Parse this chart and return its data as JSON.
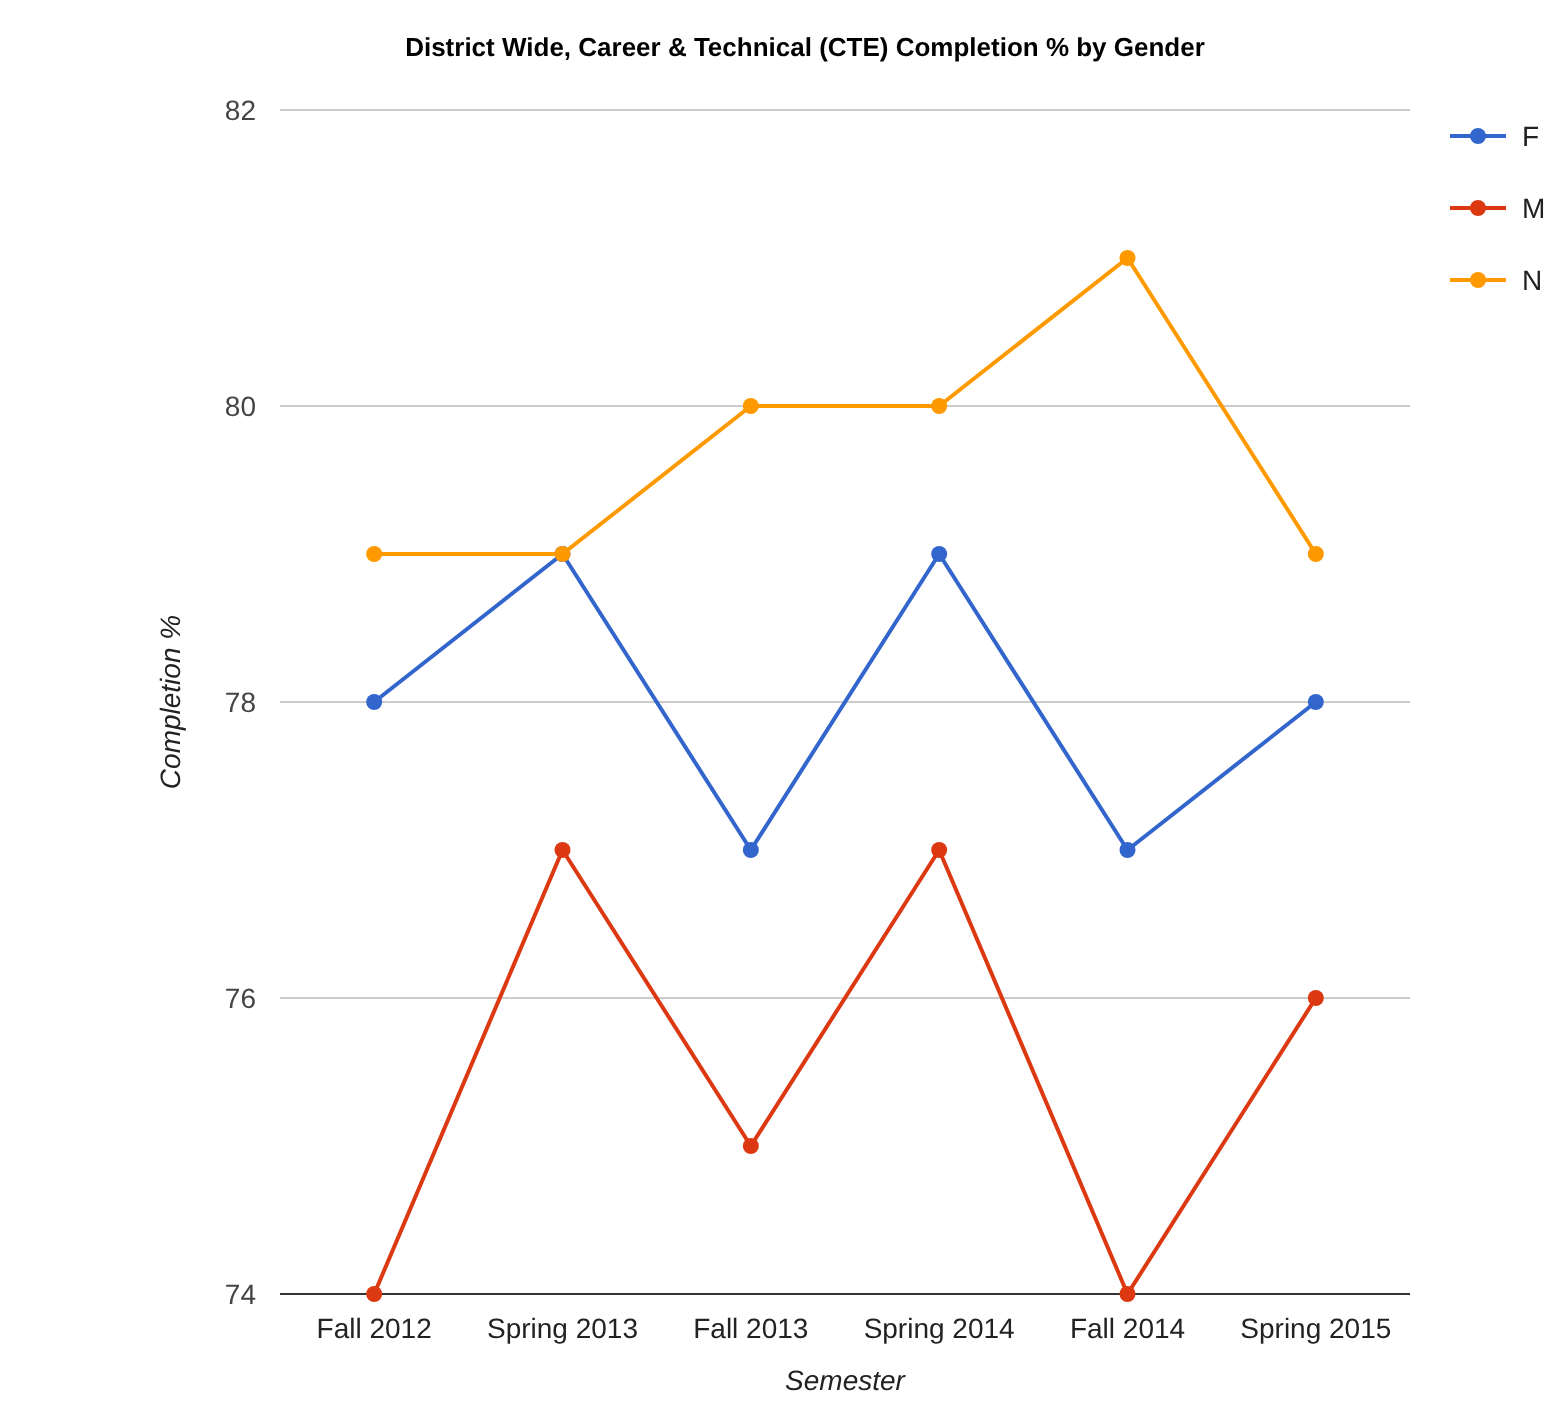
{
  "chart_data": {
    "type": "line",
    "title": "District Wide, Career & Technical (CTE) Completion % by Gender",
    "xlabel": "Semester",
    "ylabel": "Completion %",
    "categories": [
      "Fall 2012",
      "Spring 2013",
      "Fall 2013",
      "Spring 2014",
      "Fall 2014",
      "Spring 2015"
    ],
    "series": [
      {
        "name": "F",
        "color": "#3366cc",
        "values": [
          78,
          79,
          77,
          79,
          77,
          78
        ]
      },
      {
        "name": "M",
        "color": "#dc3912",
        "values": [
          74,
          77,
          75,
          77,
          74,
          76
        ]
      },
      {
        "name": "N",
        "color": "#ff9900",
        "values": [
          79,
          79,
          80,
          80,
          81,
          79
        ]
      }
    ],
    "ylim": [
      74,
      82
    ],
    "yticks": [
      74,
      76,
      78,
      80,
      82
    ],
    "grid": "y",
    "legend": "top right",
    "marker": "circle",
    "line_style": "solid"
  }
}
